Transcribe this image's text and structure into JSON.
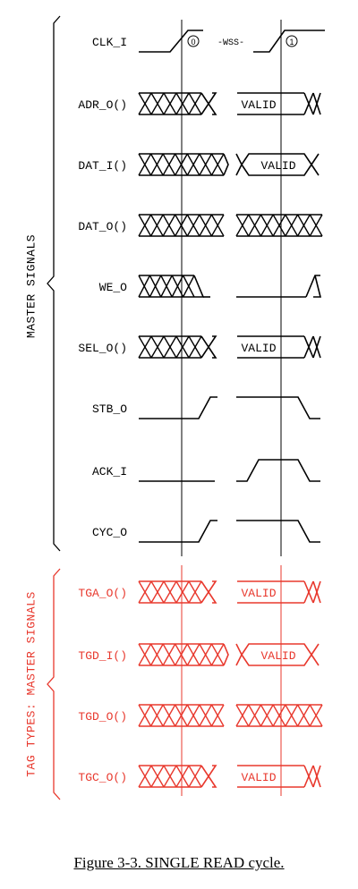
{
  "caption": "Figure 3-3.  SINGLE READ cycle.",
  "colors": {
    "master": "#000000",
    "tag": "#e8382d"
  },
  "groups": [
    {
      "label": "MASTER SIGNALS",
      "color": "#000000"
    },
    {
      "label": "TAG TYPES: MASTER SIGNALS",
      "color": "#e8382d"
    }
  ],
  "clock_markers": [
    "0",
    "1"
  ],
  "wss_label": "-WSS-",
  "valid_label": "VALID",
  "signals": [
    {
      "name": "CLK_I",
      "group": 0,
      "kind": "clock"
    },
    {
      "name": "ADR_O()",
      "group": 0,
      "kind": "bus_out",
      "valid": true
    },
    {
      "name": "DAT_I()",
      "group": 0,
      "kind": "bus_in",
      "valid": true
    },
    {
      "name": "DAT_O()",
      "group": 0,
      "kind": "bus_full",
      "valid": false
    },
    {
      "name": "WE_O",
      "group": 0,
      "kind": "we",
      "valid": false
    },
    {
      "name": "SEL_O()",
      "group": 0,
      "kind": "bus_out",
      "valid": true
    },
    {
      "name": "STB_O",
      "group": 0,
      "kind": "strobe"
    },
    {
      "name": "ACK_I",
      "group": 0,
      "kind": "ack"
    },
    {
      "name": "CYC_O",
      "group": 0,
      "kind": "strobe"
    },
    {
      "name": "TGA_O()",
      "group": 1,
      "kind": "bus_out",
      "valid": true
    },
    {
      "name": "TGD_I()",
      "group": 1,
      "kind": "bus_in",
      "valid": true
    },
    {
      "name": "TGD_O()",
      "group": 1,
      "kind": "bus_full",
      "valid": false
    },
    {
      "name": "TGC_O()",
      "group": 1,
      "kind": "bus_out",
      "valid": true
    }
  ]
}
